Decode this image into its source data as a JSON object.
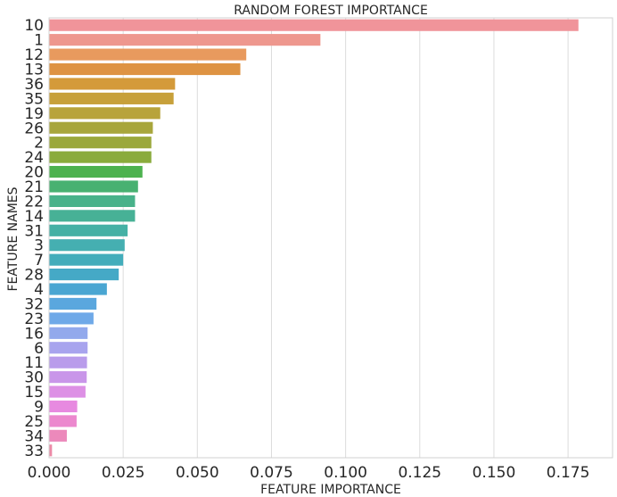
{
  "chart_data": {
    "type": "bar",
    "orientation": "horizontal",
    "title": "RANDOM FOREST IMPORTANCE",
    "xlabel": "FEATURE IMPORTANCE",
    "ylabel": "FEATURE NAMES",
    "xlim": [
      0,
      0.19
    ],
    "xticks": [
      "0.000",
      "0.025",
      "0.050",
      "0.075",
      "0.100",
      "0.125",
      "0.150",
      "0.175"
    ],
    "grid": true,
    "categories": [
      "10",
      "1",
      "12",
      "13",
      "36",
      "35",
      "19",
      "26",
      "2",
      "24",
      "20",
      "21",
      "22",
      "14",
      "31",
      "3",
      "7",
      "28",
      "4",
      "32",
      "23",
      "16",
      "6",
      "11",
      "30",
      "15",
      "9",
      "25",
      "34",
      "33"
    ],
    "values": [
      0.1785,
      0.0915,
      0.0665,
      0.0645,
      0.0425,
      0.042,
      0.0375,
      0.035,
      0.0345,
      0.0345,
      0.0315,
      0.03,
      0.029,
      0.029,
      0.0265,
      0.0255,
      0.025,
      0.0235,
      0.0195,
      0.016,
      0.015,
      0.013,
      0.013,
      0.0128,
      0.0127,
      0.0123,
      0.0095,
      0.0093,
      0.006,
      0.001
    ],
    "colors": [
      "#f0949a",
      "#ee978e",
      "#e89a5e",
      "#de9343",
      "#d49a3a",
      "#c7a03a",
      "#b8a33b",
      "#a8a63c",
      "#9ba83b",
      "#8aab3c",
      "#4db24f",
      "#48b171",
      "#48b28a",
      "#47b196",
      "#45b1a5",
      "#45afb1",
      "#43adbb",
      "#45a9c6",
      "#4aa6d2",
      "#5aa7de",
      "#6fa9e8",
      "#92a9ec",
      "#a8a4ee",
      "#b99ceb",
      "#c996e9",
      "#dd90e5",
      "#e78ae0",
      "#ec88ce",
      "#ec89bb",
      "#ec8aa6"
    ]
  }
}
